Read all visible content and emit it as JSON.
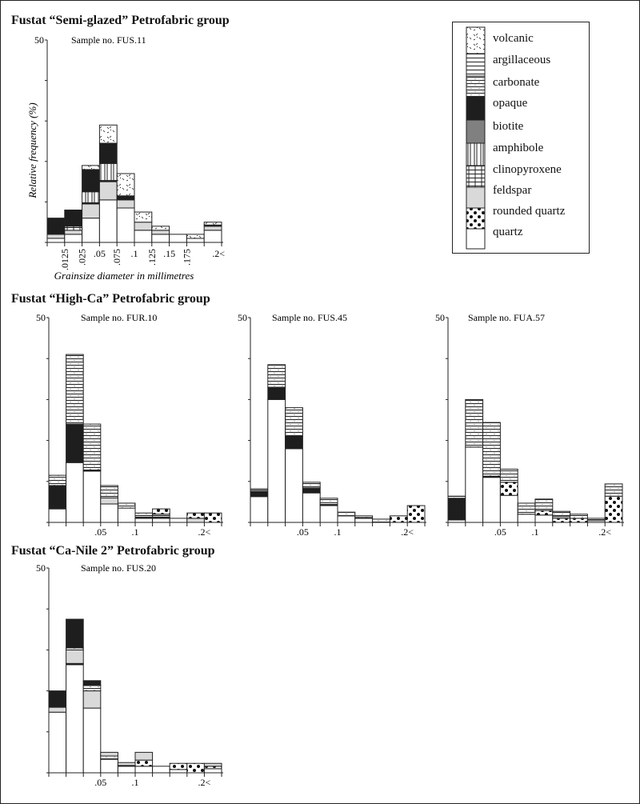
{
  "layers_order": [
    "quartz",
    "rounded_quartz",
    "feldspar",
    "clinopyroxene",
    "amphibole",
    "biotite",
    "opaque",
    "carbonate",
    "argillaceous",
    "volcanic"
  ],
  "legend": {
    "items": [
      {
        "key": "volcanic",
        "label": "volcanic"
      },
      {
        "key": "argillaceous",
        "label": "argillaceous"
      },
      {
        "key": "carbonate",
        "label": "carbonate"
      },
      {
        "key": "opaque",
        "label": "opaque"
      },
      {
        "key": "biotite",
        "label": "biotite"
      },
      {
        "key": "amphibole",
        "label": "amphibole"
      },
      {
        "key": "clinopyroxene",
        "label": "clinopyroxene"
      },
      {
        "key": "feldspar",
        "label": "feldspar"
      },
      {
        "key": "rounded_quartz",
        "label": "rounded quartz"
      },
      {
        "key": "quartz",
        "label": "quartz"
      }
    ]
  },
  "colors": {
    "opaque": "#1e1e1e",
    "biotite": "#808080",
    "feldspar": "#d9d9d9",
    "quartz": "#ffffff"
  },
  "groups": [
    {
      "title": "Fustat “Semi-glazed” Petrofabric group"
    },
    {
      "title": "Fustat “High-Ca” Petrofabric group"
    },
    {
      "title": "Fustat “Ca-Nile 2” Petrofabric group"
    }
  ],
  "chart_data": [
    {
      "type": "bar",
      "stacked": true,
      "title": "Sample no. FUS.11",
      "group": "Fustat “Semi-glazed” Petrofabric group",
      "xlabel": "Grainsize diameter in millimetres",
      "ylabel": "Relative frequency (%)",
      "ylim": [
        0,
        50
      ],
      "ytick_labels": [
        "50"
      ],
      "xtick_labels": [
        ".0125",
        ".025",
        ".05",
        ".075",
        ".1",
        ".125",
        ".15",
        ".175",
        ".2<"
      ],
      "categories": [
        "0-.0125",
        ".0125-.025",
        ".025-.05",
        ".05-.075",
        ".075-.1",
        ".1-.125",
        ".125-.15",
        ".15-.175",
        ".175-.2",
        ".2<"
      ],
      "bars": [
        {
          "quartz": 1,
          "feldspar": 1,
          "opaque": 4
        },
        {
          "quartz": 2,
          "feldspar": 1,
          "clinopyroxene": 1,
          "opaque": 4
        },
        {
          "quartz": 6,
          "feldspar": 3.5,
          "opaque": 0.3,
          "amphibole": 2.7,
          "opaque_2": 5.5,
          "volcanic": 1
        },
        {
          "quartz": 10.5,
          "feldspar": 4.5,
          "opaque": 0.3,
          "amphibole": 4.2,
          "opaque_2": 5,
          "volcanic": 4.5
        },
        {
          "quartz": 8.5,
          "feldspar": 2,
          "opaque": 1,
          "volcanic": 5.5
        },
        {
          "quartz": 3,
          "feldspar": 2,
          "volcanic": 2.5
        },
        {
          "quartz": 2,
          "feldspar": 1,
          "volcanic": 1
        },
        {
          "quartz": 2
        },
        {
          "quartz": 1,
          "volcanic": 1
        },
        {
          "quartz": 3,
          "feldspar": 1,
          "opaque": 0.3,
          "volcanic": 0.7
        }
      ]
    },
    {
      "type": "bar",
      "stacked": true,
      "title": "Sample no. FUR.10",
      "group": "Fustat “High-Ca” Petrofabric group",
      "ylim": [
        0,
        50
      ],
      "ytick_labels": [
        "50"
      ],
      "xtick_labels": [
        ".05",
        ".1",
        ".2<"
      ],
      "bars": [
        {
          "quartz": 3.3,
          "opaque": 5.7,
          "carbonate": 2.5
        },
        {
          "quartz": 14.6,
          "opaque": 9.4,
          "carbonate": 17
        },
        {
          "quartz": 12.5,
          "opaque": 0.3,
          "carbonate": 11.2
        },
        {
          "quartz": 4.5,
          "feldspar": 1.5,
          "carbonate": 3
        },
        {
          "quartz": 3.5,
          "carbonate": 1.2
        },
        {
          "quartz": 1,
          "opaque": 0.3,
          "carbonate": 1
        },
        {
          "quartz": 1,
          "opaque": 0.3,
          "argillaceous": 0.7,
          "rounded_quartz": 1.3
        },
        {
          "quartz": 1
        },
        {
          "feldspar": 1,
          "rounded_quartz": 1.3
        },
        {
          "rounded_quartz": 2.3
        }
      ]
    },
    {
      "type": "bar",
      "stacked": true,
      "title": "Sample no. FUS.45",
      "group": "Fustat “High-Ca” Petrofabric group",
      "ylim": [
        0,
        50
      ],
      "ytick_labels": [
        "50"
      ],
      "xtick_labels": [
        ".05",
        ".1",
        ".2<"
      ],
      "bars": [
        {
          "quartz": 6.3,
          "opaque": 1.3,
          "carbonate": 0.6
        },
        {
          "quartz": 30,
          "opaque": 3,
          "carbonate": 5.5
        },
        {
          "quartz": 18,
          "opaque": 3,
          "carbonate": 7
        },
        {
          "quartz": 7.2,
          "opaque": 1.2,
          "carbonate": 1.4
        },
        {
          "quartz": 4.1,
          "opaque": 0.3,
          "carbonate": 1.5
        },
        {
          "quartz": 1.6,
          "carbonate": 0.9
        },
        {
          "quartz": 1,
          "opaque": 0.2,
          "carbonate": 0.4
        },
        {
          "carbonate": 0.8
        },
        {
          "rounded_quartz": 1.6
        },
        {
          "rounded_quartz": 4.1
        }
      ]
    },
    {
      "type": "bar",
      "stacked": true,
      "title": "Sample no. FUA.57",
      "group": "Fustat “High-Ca” Petrofabric group",
      "ylim": [
        0,
        50
      ],
      "ytick_labels": [
        "50"
      ],
      "xtick_labels": [
        ".05",
        ".1",
        ".2<"
      ],
      "bars": [
        {
          "quartz": 0.6,
          "opaque": 5.3,
          "carbonate": 0.5
        },
        {
          "quartz": 18.4,
          "carbonate": 11.6
        },
        {
          "quartz": 11,
          "opaque": 0.3,
          "carbonate": 13.1
        },
        {
          "quartz": 6.6,
          "rounded_quartz": 3.2,
          "carbonate": 3.2
        },
        {
          "quartz": 2,
          "carbonate": 2.7
        },
        {
          "quartz": 1.8,
          "rounded_quartz": 1.1,
          "carbonate": 2.8
        },
        {
          "rounded_quartz": 1,
          "argillaceous": 0.4,
          "carbonate": 1.3
        },
        {
          "rounded_quartz": 1,
          "carbonate": 1
        },
        {
          "quartz": 0.4,
          "argillaceous": 0.6
        },
        {
          "rounded_quartz": 6.4,
          "carbonate": 3
        }
      ]
    },
    {
      "type": "bar",
      "stacked": true,
      "title": "Sample no. FUS.20",
      "group": "Fustat “Ca-Nile 2” Petrofabric group",
      "ylim": [
        0,
        50
      ],
      "ytick_labels": [
        "50"
      ],
      "xtick_labels": [
        ".05",
        ".1",
        ".2<"
      ],
      "bars": [
        {
          "quartz": 14.8,
          "feldspar": 1.2,
          "opaque": 4
        },
        {
          "quartz": 26.4,
          "opaque": 0.3,
          "feldspar": 3.3,
          "carbonate": 0.5,
          "opaque_2": 7
        },
        {
          "quartz": 15.8,
          "feldspar": 4.2,
          "carbonate": 1.3,
          "opaque": 1.2
        },
        {
          "quartz": 3.3,
          "carbonate": 0.8,
          "feldspar": 0.9
        },
        {
          "quartz": 1.6,
          "opaque": 0.2,
          "feldspar": 0.7
        },
        {
          "quartz": 1.6,
          "rounded_quartz": 1.5,
          "feldspar": 1.9
        },
        {
          "quartz": 1.6
        },
        {
          "quartz": 0.8,
          "rounded_quartz": 1.5
        },
        {
          "rounded_quartz": 2.3
        },
        {
          "quartz": 1,
          "rounded_quartz": 0.6,
          "feldspar": 0.7
        }
      ]
    }
  ]
}
